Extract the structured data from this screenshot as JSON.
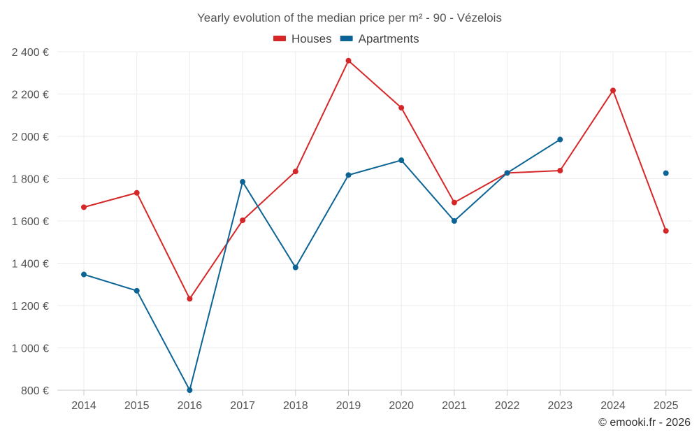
{
  "chart_data": {
    "type": "line",
    "title": "Yearly evolution of the median price per m² - 90 - Vézelois",
    "categories": [
      "2014",
      "2015",
      "2016",
      "2017",
      "2018",
      "2019",
      "2020",
      "2021",
      "2022",
      "2023",
      "2024",
      "2025"
    ],
    "series": [
      {
        "name": "Houses",
        "color": "#d62728",
        "values": [
          1665,
          1733,
          1232,
          1603,
          1834,
          2358,
          2135,
          1687,
          1827,
          1838,
          2217,
          1553
        ]
      },
      {
        "name": "Apartments",
        "color": "#0b6494",
        "values": [
          1347,
          1270,
          800,
          1785,
          1380,
          1817,
          1887,
          1600,
          1827,
          1985,
          null,
          1826
        ]
      }
    ],
    "ylim": [
      800,
      2400
    ],
    "yticks": [
      800,
      1000,
      1200,
      1400,
      1600,
      1800,
      2000,
      2200,
      2400
    ],
    "ytick_labels": [
      "800 €",
      "1 000 €",
      "1 200 €",
      "1 400 €",
      "1 600 €",
      "1 800 €",
      "2 000 €",
      "2 200 €",
      "2 400 €"
    ],
    "xlabel": "",
    "ylabel": "",
    "grid": true,
    "legend_position": "top-center"
  },
  "footer": {
    "credit": "© emooki.fr - 2026"
  }
}
